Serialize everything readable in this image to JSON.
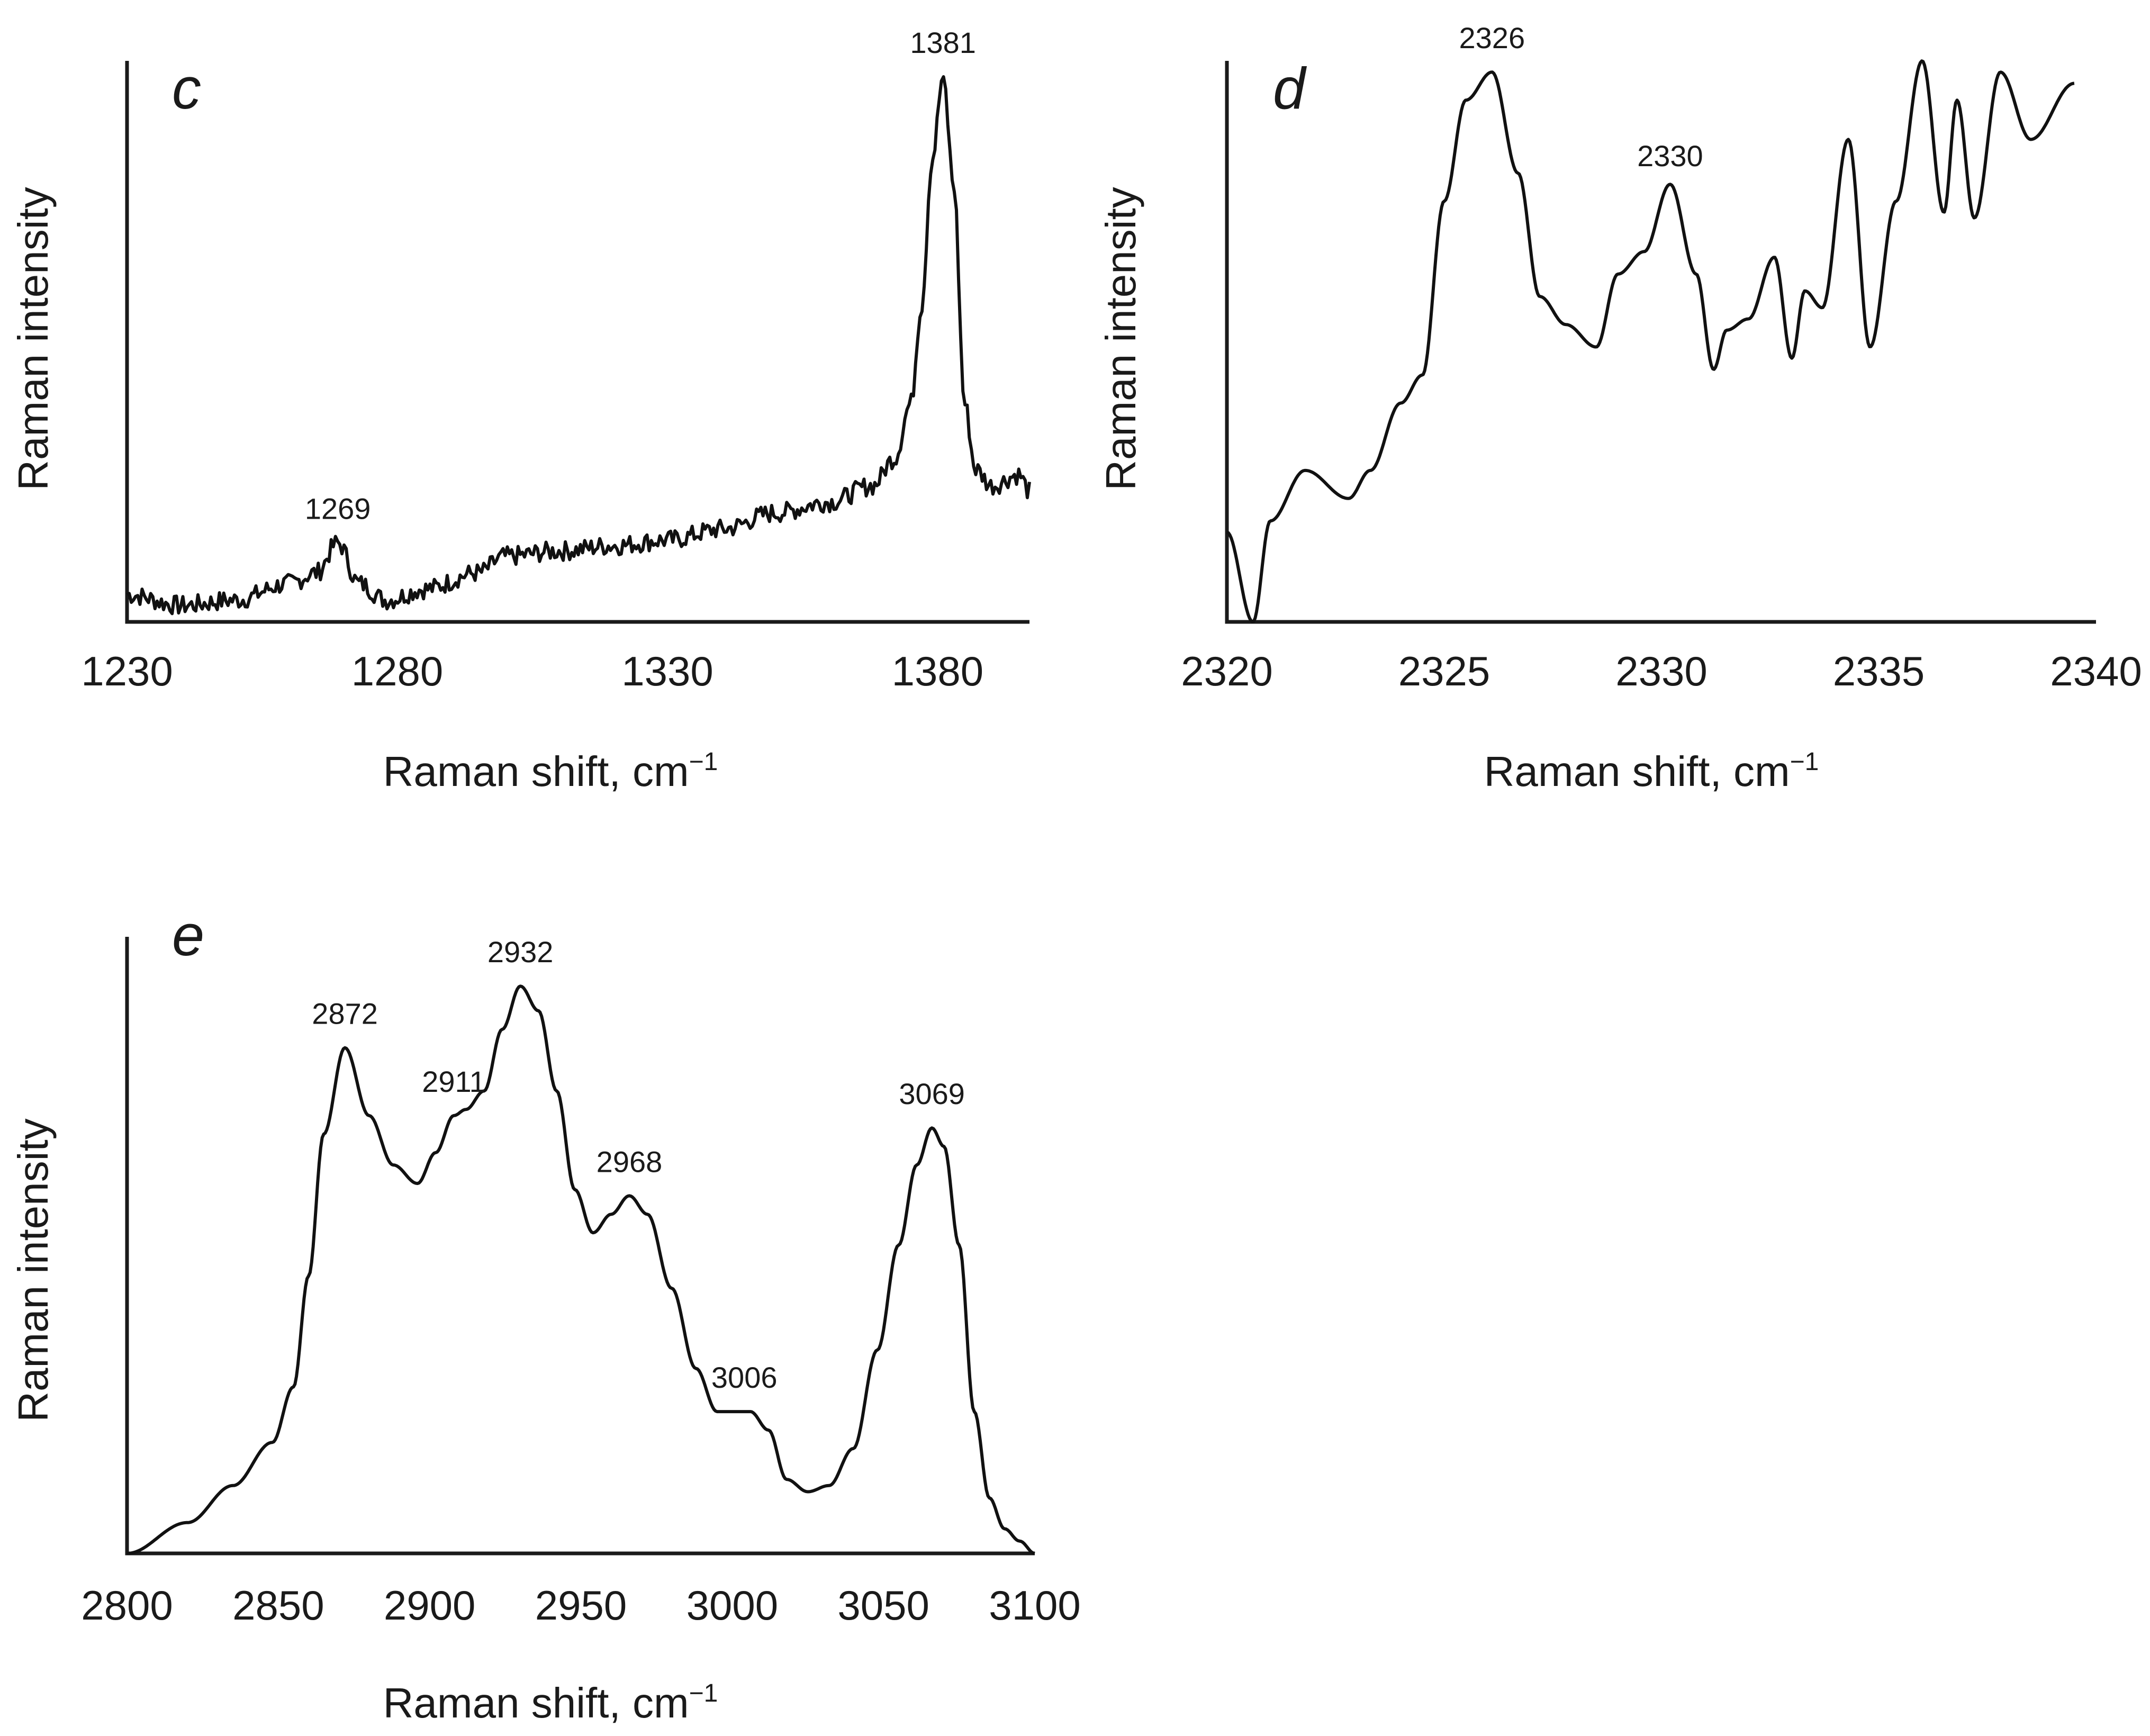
{
  "chart_data": [
    {
      "panel": "c",
      "type": "line",
      "title": "",
      "xlabel": "Raman shift, cm",
      "xlabel_superscript": "−1",
      "ylabel": "Raman intensity",
      "xlim": [
        1230,
        1397
      ],
      "ylim": [
        0,
        1
      ],
      "xticks": [
        1230,
        1280,
        1330,
        1380
      ],
      "xtick_labels": [
        "1230",
        "1280",
        "1330",
        "1380"
      ],
      "grid": false,
      "noise_amplitude": 0.018,
      "annotations": [
        {
          "label": "1269",
          "x": 1269,
          "y": 0.145
        },
        {
          "label": "1381",
          "x": 1381,
          "y": 1.0
        }
      ],
      "series": [
        {
          "name": "spectrum",
          "x": [
            1230,
            1240,
            1250,
            1260,
            1265,
            1269,
            1273,
            1278,
            1285,
            1295,
            1300,
            1310,
            1320,
            1330,
            1340,
            1350,
            1360,
            1368,
            1372,
            1375,
            1377,
            1379,
            1381,
            1383,
            1385,
            1387,
            1390,
            1395,
            1397
          ],
          "values": [
            0.05,
            0.03,
            0.04,
            0.07,
            0.09,
            0.145,
            0.07,
            0.04,
            0.06,
            0.09,
            0.12,
            0.13,
            0.14,
            0.15,
            0.17,
            0.2,
            0.22,
            0.25,
            0.3,
            0.4,
            0.58,
            0.85,
            1.0,
            0.8,
            0.4,
            0.28,
            0.25,
            0.27,
            0.24
          ]
        }
      ]
    },
    {
      "panel": "d",
      "type": "line",
      "title": "",
      "xlabel": "Raman shift, cm",
      "xlabel_superscript": "−1",
      "ylabel": "Raman intensity",
      "xlim": [
        2320,
        2340
      ],
      "ylim": [
        0,
        1
      ],
      "xticks": [
        2320,
        2325,
        2330,
        2335,
        2340
      ],
      "xtick_labels": [
        "2320",
        "2325",
        "2330",
        "2335",
        "2340"
      ],
      "grid": false,
      "annotations": [
        {
          "label": "2326",
          "x": 2326.1,
          "y": 0.98
        },
        {
          "label": "2330",
          "x": 2330.2,
          "y": 0.77
        }
      ],
      "series": [
        {
          "name": "spectrum",
          "x": [
            2320,
            2320.6,
            2321,
            2321.8,
            2322.8,
            2323.3,
            2324,
            2324.5,
            2325,
            2325.5,
            2326.1,
            2326.7,
            2327.2,
            2327.8,
            2328.5,
            2329,
            2329.6,
            2330.2,
            2330.8,
            2331.2,
            2331.5,
            2332,
            2332.6,
            2333,
            2333.3,
            2333.7,
            2334.3,
            2334.8,
            2335.4,
            2336,
            2336.5,
            2336.8,
            2337.2,
            2337.8,
            2338.5,
            2339.5
          ],
          "values": [
            0.16,
            0.0,
            0.18,
            0.27,
            0.22,
            0.27,
            0.39,
            0.44,
            0.75,
            0.93,
            0.98,
            0.8,
            0.58,
            0.53,
            0.49,
            0.62,
            0.66,
            0.78,
            0.62,
            0.45,
            0.52,
            0.54,
            0.65,
            0.47,
            0.59,
            0.56,
            0.86,
            0.49,
            0.75,
            1.0,
            0.73,
            0.93,
            0.72,
            0.98,
            0.86,
            0.96
          ]
        }
      ]
    },
    {
      "panel": "e",
      "type": "line",
      "title": "",
      "xlabel": "Raman shift, cm",
      "xlabel_superscript": "−1",
      "ylabel": "Raman intensity",
      "xlim": [
        2800,
        3100
      ],
      "ylim": [
        0,
        1
      ],
      "xticks": [
        2800,
        2850,
        2900,
        2950,
        3000,
        3050,
        3100
      ],
      "xtick_labels": [
        "2800",
        "2850",
        "2900",
        "2950",
        "3000",
        "3050",
        "3100"
      ],
      "grid": false,
      "annotations": [
        {
          "label": "2872",
          "x": 2872,
          "y": 0.82
        },
        {
          "label": "2911",
          "x": 2908,
          "y": 0.71
        },
        {
          "label": "2932",
          "x": 2930,
          "y": 0.92
        },
        {
          "label": "2968",
          "x": 2966,
          "y": 0.58
        },
        {
          "label": "3006",
          "x": 3004,
          "y": 0.23
        },
        {
          "label": "3069",
          "x": 3066,
          "y": 0.69
        }
      ],
      "series": [
        {
          "name": "spectrum",
          "x": [
            2800,
            2820,
            2835,
            2848,
            2855,
            2860,
            2865,
            2872,
            2880,
            2888,
            2896,
            2902,
            2908,
            2912,
            2918,
            2924,
            2930,
            2936,
            2942,
            2948,
            2954,
            2960,
            2966,
            2972,
            2980,
            2988,
            2995,
            3000,
            3006,
            3012,
            3018,
            3025,
            3032,
            3040,
            3048,
            3055,
            3061,
            3066,
            3070,
            3075,
            3080,
            3085,
            3090,
            3095,
            3100
          ],
          "values": [
            0.0,
            0.05,
            0.11,
            0.18,
            0.27,
            0.45,
            0.68,
            0.82,
            0.71,
            0.63,
            0.6,
            0.65,
            0.71,
            0.72,
            0.75,
            0.85,
            0.92,
            0.88,
            0.75,
            0.59,
            0.52,
            0.55,
            0.58,
            0.55,
            0.43,
            0.3,
            0.23,
            0.23,
            0.23,
            0.2,
            0.12,
            0.1,
            0.11,
            0.17,
            0.33,
            0.5,
            0.63,
            0.69,
            0.66,
            0.5,
            0.23,
            0.09,
            0.04,
            0.02,
            0.0
          ]
        }
      ]
    }
  ]
}
